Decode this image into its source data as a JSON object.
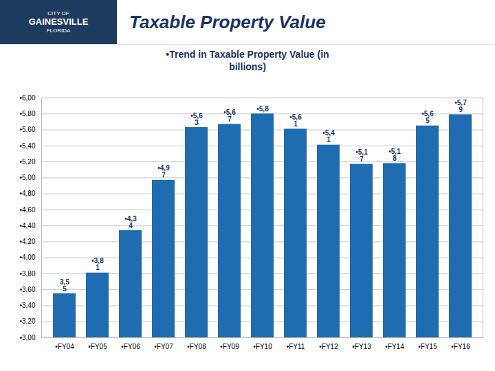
{
  "chart_data": {
    "type": "bar",
    "title": "Taxable Property Value",
    "subtitle": "•Trend in Taxable Property Value (in\nbillions)",
    "annotations": [
      "CITY OF",
      "GAINESVILLE",
      "FLORIDA"
    ],
    "categories": [
      "•FY04",
      "•FY05",
      "•FY06",
      "•FY07",
      "•FY08",
      "•FY09",
      "•FY10",
      "•FY11",
      "•FY12",
      "•FY13",
      "•FY14",
      "•FY15",
      "•FY16"
    ],
    "values": [
      3.55,
      3.81,
      4.34,
      4.97,
      5.63,
      5.67,
      5.8,
      5.61,
      5.41,
      5.17,
      5.18,
      5.65,
      5.79
    ],
    "value_labels": [
      "3,5\n5",
      "•3,8\n1",
      "•4,3\n4",
      "•4,9\n7",
      "•5,6\n3",
      "•5,6\n7",
      "•5,8",
      "•5,6\n1",
      "•5,4\n1",
      "•5,1\n7",
      "•5,1\n8",
      "•5,6\n5",
      "•5,7\n9"
    ],
    "data_labels": true,
    "color": "#1F6CB0",
    "ylim": [
      3.0,
      6.0
    ],
    "yticks": [
      {
        "value": 3.0,
        "label": "•3,00"
      },
      {
        "value": 3.2,
        "label": "•3,20"
      },
      {
        "value": 3.4,
        "label": "•3,40"
      },
      {
        "value": 3.6,
        "label": "•3,60"
      },
      {
        "value": 3.8,
        "label": "•3,80"
      },
      {
        "value": 4.0,
        "label": "•4,00"
      },
      {
        "value": 4.2,
        "label": "•4,20"
      },
      {
        "value": 4.4,
        "label": "•4,40"
      },
      {
        "value": 4.6,
        "label": "•4,60"
      },
      {
        "value": 4.8,
        "label": "•4,80"
      },
      {
        "value": 5.0,
        "label": "•5,00"
      },
      {
        "value": 5.2,
        "label": "•5,20"
      },
      {
        "value": 5.4,
        "label": "•5,40"
      },
      {
        "value": 5.6,
        "label": "•5,60"
      },
      {
        "value": 5.8,
        "label": "•5,80"
      },
      {
        "value": 6.0,
        "label": "•6,00"
      }
    ],
    "grid": true
  }
}
